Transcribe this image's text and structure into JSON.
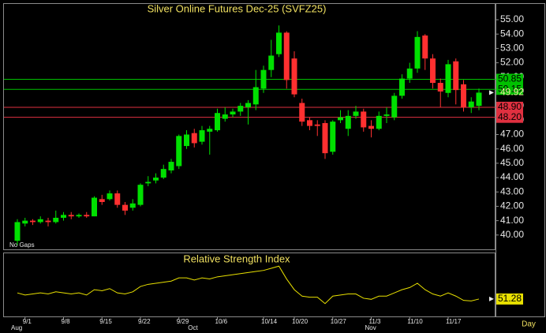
{
  "chart_data": {
    "type": "candlestick",
    "title": "Silver Online Futures Dec-25 (SVFZ25)",
    "annotation": "No Gaps",
    "period": "Day",
    "categories": [
      null,
      "9/1",
      null,
      null,
      null,
      null,
      "9/8",
      null,
      null,
      null,
      null,
      "9/15",
      null,
      null,
      null,
      null,
      "9/22",
      null,
      null,
      null,
      null,
      "9/29",
      null,
      null,
      null,
      null,
      "10/6",
      null,
      null,
      null,
      null,
      null,
      "10/14",
      null,
      null,
      null,
      "10/20",
      null,
      null,
      null,
      null,
      "10/27",
      null,
      null,
      null,
      null,
      "11/3",
      null,
      null,
      null,
      null,
      "11/10",
      null,
      null,
      null,
      null,
      "11/17",
      null,
      null,
      null,
      null
    ],
    "months": [
      "Aug",
      null,
      null,
      null,
      null,
      null,
      null,
      null,
      null,
      null,
      null,
      null,
      null,
      null,
      null,
      null,
      null,
      null,
      null,
      null,
      null,
      null,
      null,
      "Oct",
      null,
      null,
      null,
      null,
      null,
      null,
      null,
      null,
      null,
      null,
      null,
      null,
      null,
      null,
      null,
      null,
      null,
      null,
      null,
      null,
      null,
      null,
      "Nov",
      null,
      null,
      null,
      null,
      null,
      null,
      null,
      null,
      null,
      null,
      null,
      null,
      null,
      null
    ],
    "open": [
      39.6,
      40.8,
      41.0,
      40.9,
      41.0,
      40.9,
      41.2,
      41.4,
      41.3,
      41.4,
      41.3,
      42.5,
      42.5,
      42.9,
      42.1,
      41.9,
      42.1,
      43.6,
      43.8,
      44.0,
      44.5,
      44.8,
      46.2,
      47.1,
      46.5,
      47.2,
      47.3,
      48.1,
      48.4,
      48.6,
      48.9,
      49.1,
      50.2,
      51.5,
      52.6,
      54.1,
      52.3,
      49.2,
      48.0,
      47.7,
      47.8,
      45.8,
      48.0,
      47.4,
      48.3,
      48.6,
      47.6,
      47.4,
      48.3,
      48.2,
      49.7,
      50.9,
      51.6,
      53.9,
      52.3,
      50.6,
      49.9,
      52.1,
      50.5,
      48.9,
      49.0
    ],
    "close": [
      40.9,
      41.0,
      40.9,
      41.1,
      40.9,
      41.2,
      41.4,
      41.3,
      41.4,
      41.3,
      42.6,
      42.3,
      42.9,
      42.1,
      41.7,
      42.2,
      43.5,
      43.7,
      44.0,
      44.6,
      45.1,
      46.9,
      47.0,
      46.4,
      47.3,
      47.4,
      48.5,
      48.4,
      48.6,
      49.0,
      49.2,
      50.3,
      51.5,
      52.5,
      54.1,
      50.8,
      49.8,
      47.9,
      47.6,
      47.6,
      45.7,
      47.9,
      48.2,
      48.3,
      48.6,
      47.5,
      47.4,
      48.3,
      48.4,
      49.7,
      50.9,
      51.6,
      53.8,
      52.3,
      50.6,
      50.0,
      51.9,
      50.1,
      48.9,
      49.3,
      49.92
    ],
    "high": [
      41.1,
      41.2,
      41.1,
      41.3,
      41.2,
      41.7,
      41.6,
      41.6,
      41.5,
      41.6,
      42.7,
      42.8,
      43.1,
      43.1,
      42.3,
      42.5,
      43.6,
      44.1,
      44.3,
      44.9,
      45.3,
      47.0,
      47.3,
      47.4,
      47.6,
      47.6,
      48.8,
      48.9,
      48.8,
      49.2,
      49.4,
      51.5,
      51.8,
      53.6,
      54.6,
      54.2,
      52.8,
      49.5,
      48.2,
      48.0,
      48.0,
      48.0,
      48.7,
      48.7,
      49.0,
      48.8,
      48.0,
      48.6,
      48.9,
      49.9,
      51.2,
      52.0,
      54.2,
      54.0,
      52.6,
      50.9,
      52.2,
      52.3,
      50.8,
      49.6,
      50.2
    ],
    "low": [
      39.3,
      40.6,
      40.7,
      40.8,
      40.6,
      40.8,
      41.0,
      41.1,
      41.2,
      41.2,
      41.3,
      42.1,
      42.4,
      41.9,
      41.4,
      41.7,
      42.0,
      43.4,
      43.6,
      43.9,
      44.3,
      44.6,
      46.0,
      46.1,
      46.3,
      45.6,
      47.2,
      47.9,
      48.2,
      48.3,
      47.7,
      48.7,
      49.9,
      51.0,
      52.4,
      50.2,
      49.6,
      47.6,
      47.3,
      46.9,
      45.3,
      45.6,
      47.8,
      46.9,
      48.1,
      47.2,
      46.8,
      47.3,
      47.8,
      48.0,
      49.5,
      50.6,
      51.3,
      51.5,
      50.2,
      48.9,
      49.6,
      49.1,
      48.6,
      48.5,
      48.7
    ],
    "up_color": "#00e000",
    "down_color": "#ff3030",
    "ylim": [
      39.0,
      56.1
    ],
    "yticks": [
      {
        "value": 40,
        "label": "40.00"
      },
      {
        "value": 41,
        "label": "41.00"
      },
      {
        "value": 42,
        "label": "42.00"
      },
      {
        "value": 43,
        "label": "43.00"
      },
      {
        "value": 44,
        "label": "44.00"
      },
      {
        "value": 45,
        "label": "45.00"
      },
      {
        "value": 46,
        "label": "46.00"
      },
      {
        "value": 47,
        "label": "47.00"
      },
      {
        "value": 48,
        "label": "48.00"
      },
      {
        "value": 49,
        "label": "49.00"
      },
      {
        "value": 50,
        "label": "50.00"
      },
      {
        "value": 51,
        "label": "51.00"
      },
      {
        "value": 52,
        "label": "52.00"
      },
      {
        "value": 53,
        "label": "53.00"
      },
      {
        "value": 54,
        "label": "54.00"
      },
      {
        "value": 55,
        "label": "55.00"
      }
    ],
    "levels": [
      {
        "value": 50.85,
        "color": "#00c000"
      },
      {
        "value": 50.15,
        "color": "#00c000"
      },
      {
        "value": 48.9,
        "label": "48.90",
        "color": "#e03040"
      },
      {
        "value": 48.2,
        "label": "48.20",
        "color": "#e03040"
      }
    ],
    "last_price": 49.92,
    "rsi": {
      "title": "Relative Strength Index",
      "color": "#e8e000",
      "ylim": [
        35,
        94
      ],
      "values": [
        57,
        55,
        56,
        57,
        56,
        58,
        57,
        56,
        57,
        55,
        60,
        59,
        61,
        57,
        56,
        58,
        63,
        65,
        66,
        67,
        68,
        71,
        71,
        69,
        71,
        70,
        72,
        73,
        74,
        75,
        76,
        77,
        78,
        80,
        82,
        70,
        60,
        54,
        53,
        53,
        47,
        54,
        55,
        56,
        56,
        52,
        51,
        54,
        54,
        57,
        60,
        62,
        66,
        60,
        56,
        54,
        57,
        54,
        50,
        49.5,
        51.28
      ]
    }
  }
}
